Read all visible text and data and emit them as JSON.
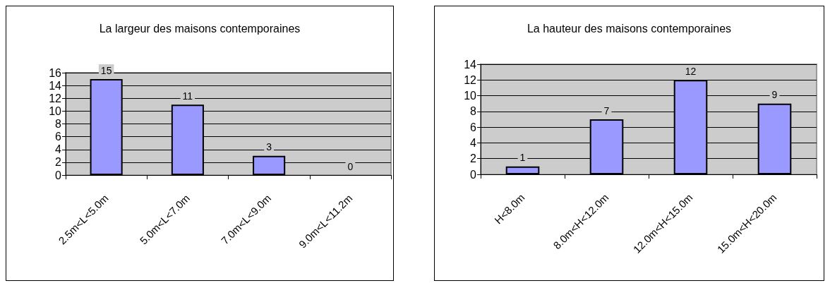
{
  "chart_data": [
    {
      "type": "bar",
      "title": "La largeur des maisons contemporaines",
      "categories": [
        "2.5m<L<5.0m",
        "5.0m<L<7.0m",
        "7.0m<L<9.0m",
        "9.0m<L<11.2m"
      ],
      "values": [
        15,
        11,
        3,
        0
      ],
      "color": "#9999ff",
      "ylim": [
        0,
        16
      ],
      "yticks": [
        0,
        2,
        4,
        6,
        8,
        10,
        12,
        14,
        16
      ],
      "grid": "y",
      "data_labels": true
    },
    {
      "type": "bar",
      "title": "La hauteur des maisons contemporaines",
      "categories": [
        "H<8.0m",
        "8.0m<H<12.0m",
        "12.0m<H<15.0m",
        "15.0m<H<20.0m"
      ],
      "values": [
        1,
        7,
        12,
        9
      ],
      "color": "#9999ff",
      "ylim": [
        0,
        14
      ],
      "yticks": [
        0,
        2,
        4,
        6,
        8,
        10,
        12,
        14
      ],
      "grid": "y",
      "data_labels": true
    }
  ]
}
